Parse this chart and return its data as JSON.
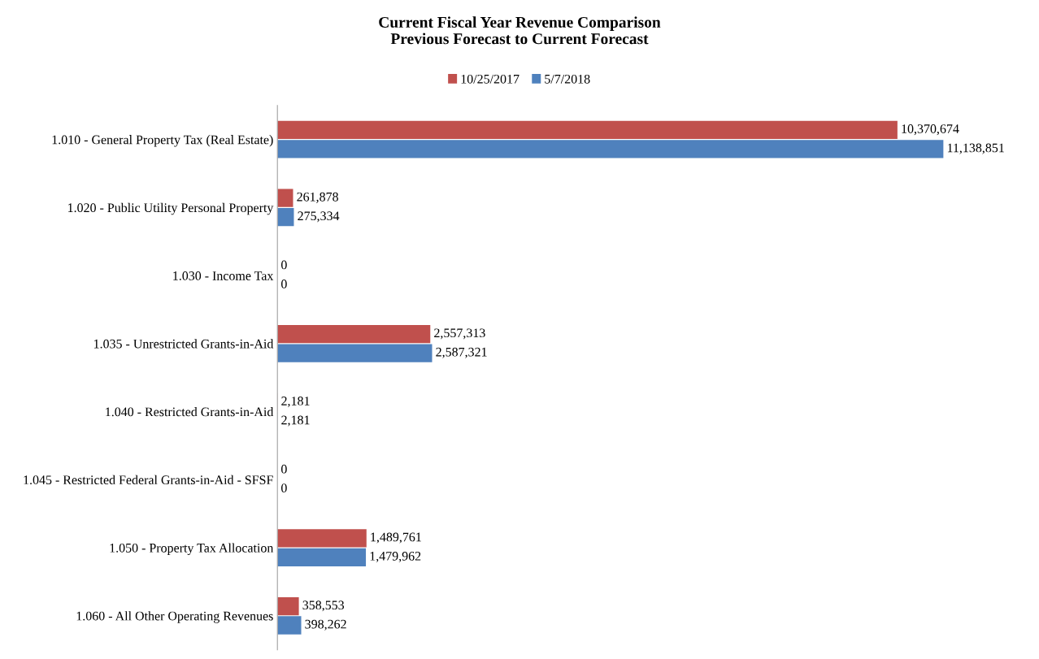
{
  "chart_data": {
    "type": "bar",
    "orientation": "horizontal",
    "title": "Current Fiscal Year Revenue Comparison\nPrevious Forecast to Current Forecast",
    "categories": [
      "1.010 - General Property Tax (Real Estate)",
      "1.020 - Public Utility Personal Property",
      "1.030 - Income Tax",
      "1.035 - Unrestricted Grants-in-Aid",
      "1.040 - Restricted Grants-in-Aid",
      "1.045 - Restricted Federal Grants-in-Aid - SFSF",
      "1.050 - Property Tax Allocation",
      "1.060 - All Other Operating Revenues"
    ],
    "series": [
      {
        "name": "10/25/2017",
        "color": "#c0504d",
        "values": [
          10370674,
          261878,
          0,
          2557313,
          2181,
          0,
          1489761,
          358553
        ],
        "value_labels": [
          "10,370,674",
          "261,878",
          "0",
          "2,557,313",
          "2,181",
          "0",
          "1,489,761",
          "358,553"
        ]
      },
      {
        "name": "5/7/2018",
        "color": "#4f81bd",
        "values": [
          11138851,
          275334,
          0,
          2587321,
          2181,
          0,
          1479962,
          398262
        ],
        "value_labels": [
          "11,138,851",
          "275,334",
          "0",
          "2,587,321",
          "2,181",
          "0",
          "1,479,962",
          "398,262"
        ]
      }
    ],
    "legend": "top",
    "tick_labels": "y"
  }
}
